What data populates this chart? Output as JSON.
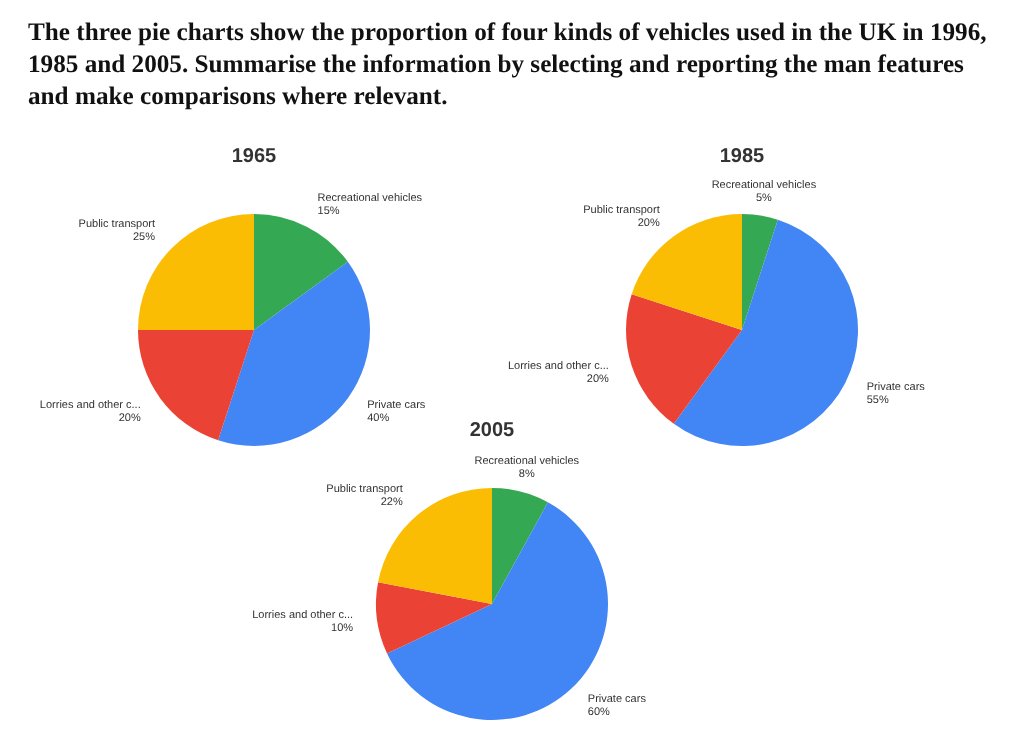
{
  "chart_data": [
    {
      "type": "other",
      "title": "The three pie charts show the proportion of four kinds of vehicles used in the UK in 1996, 1985 and 2005. Summarise the information by selecting and reporting the man features and make comparisons where relevant."
    },
    {
      "type": "pie",
      "title": "1965",
      "categories": [
        "Recreational vehicles",
        "Private cars",
        "Lorries and other c...",
        "Public transport"
      ],
      "values": [
        15,
        40,
        20,
        25
      ],
      "value_labels": [
        "15%",
        "40%",
        "20%",
        "25%"
      ],
      "colors": [
        "#34a853",
        "#4285f4",
        "#ea4335",
        "#fbbc04"
      ]
    },
    {
      "type": "pie",
      "title": "1985",
      "categories": [
        "Recreational vehicles",
        "Private cars",
        "Lorries and other c...",
        "Public transport"
      ],
      "values": [
        5,
        55,
        20,
        20
      ],
      "value_labels": [
        "5%",
        "55%",
        "20%",
        "20%"
      ],
      "colors": [
        "#34a853",
        "#4285f4",
        "#ea4335",
        "#fbbc04"
      ]
    },
    {
      "type": "pie",
      "title": "2005",
      "categories": [
        "Recreational vehicles",
        "Private cars",
        "Lorries and other c...",
        "Public transport"
      ],
      "values": [
        8,
        60,
        10,
        22
      ],
      "value_labels": [
        "8%",
        "60%",
        "10%",
        "22%"
      ],
      "colors": [
        "#34a853",
        "#4285f4",
        "#ea4335",
        "#fbbc04"
      ]
    }
  ]
}
